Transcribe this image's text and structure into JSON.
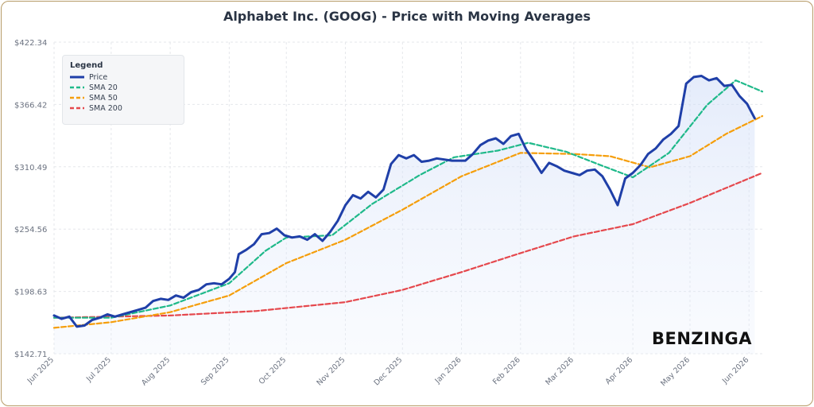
{
  "page": {
    "title": "Alphabet Inc. (GOOG) - Price with Moving Averages",
    "brand": "BENZINGA"
  },
  "legend": {
    "title": "Legend",
    "items": [
      {
        "label": "Price",
        "color": "#1f3fa8",
        "dash": "solid"
      },
      {
        "label": "SMA 20",
        "color": "#1fb98a",
        "dash": "dashed"
      },
      {
        "label": "SMA 50",
        "color": "#f59e0b",
        "dash": "dashed"
      },
      {
        "label": "SMA 200",
        "color": "#e5484d",
        "dash": "dashed"
      }
    ]
  },
  "chart_data": {
    "type": "line",
    "title": "Alphabet Inc. (GOOG) - Price with Moving Averages",
    "x_ticks": [
      "Jun 2025",
      "Jul 2025",
      "Aug 2025",
      "Sep 2025",
      "Oct 2025",
      "Nov 2025",
      "Dec 2025",
      "Jan 2026",
      "Feb 2026",
      "Mar 2026",
      "Apr 2026",
      "May 2026",
      "Jun 2026"
    ],
    "y_ticks": [
      "$142.71",
      "$198.63",
      "$254.56",
      "$310.49",
      "$366.42",
      "$422.34"
    ],
    "ylim": [
      142.71,
      422.34
    ],
    "xlim": [
      "2025-06-01",
      "2026-06-08"
    ],
    "grid": true,
    "legend_position": "top-left",
    "series": [
      {
        "name": "Price",
        "color": "#1f3fa8",
        "style": "solid",
        "area_fill": true,
        "points": [
          [
            "2025-06-01",
            177
          ],
          [
            "2025-06-05",
            174
          ],
          [
            "2025-06-09",
            176
          ],
          [
            "2025-06-13",
            167
          ],
          [
            "2025-06-17",
            168
          ],
          [
            "2025-06-21",
            173
          ],
          [
            "2025-06-25",
            175
          ],
          [
            "2025-06-29",
            178
          ],
          [
            "2025-07-03",
            176
          ],
          [
            "2025-07-07",
            178
          ],
          [
            "2025-07-11",
            180
          ],
          [
            "2025-07-15",
            182
          ],
          [
            "2025-07-19",
            184
          ],
          [
            "2025-07-23",
            190
          ],
          [
            "2025-07-27",
            192
          ],
          [
            "2025-07-31",
            191
          ],
          [
            "2025-08-04",
            195
          ],
          [
            "2025-08-08",
            193
          ],
          [
            "2025-08-12",
            198
          ],
          [
            "2025-08-16",
            200
          ],
          [
            "2025-08-20",
            205
          ],
          [
            "2025-08-24",
            206
          ],
          [
            "2025-08-28",
            205
          ],
          [
            "2025-09-01",
            210
          ],
          [
            "2025-09-04",
            216
          ],
          [
            "2025-09-06",
            232
          ],
          [
            "2025-09-10",
            236
          ],
          [
            "2025-09-14",
            241
          ],
          [
            "2025-09-18",
            250
          ],
          [
            "2025-09-22",
            251
          ],
          [
            "2025-09-26",
            255
          ],
          [
            "2025-09-30",
            249
          ],
          [
            "2025-10-04",
            247
          ],
          [
            "2025-10-08",
            248
          ],
          [
            "2025-10-12",
            245
          ],
          [
            "2025-10-16",
            250
          ],
          [
            "2025-10-20",
            244
          ],
          [
            "2025-10-24",
            252
          ],
          [
            "2025-10-28",
            262
          ],
          [
            "2025-11-01",
            276
          ],
          [
            "2025-11-05",
            285
          ],
          [
            "2025-11-09",
            282
          ],
          [
            "2025-11-13",
            288
          ],
          [
            "2025-11-17",
            283
          ],
          [
            "2025-11-21",
            290
          ],
          [
            "2025-11-25",
            313
          ],
          [
            "2025-11-29",
            321
          ],
          [
            "2025-12-03",
            318
          ],
          [
            "2025-12-07",
            321
          ],
          [
            "2025-12-11",
            315
          ],
          [
            "2025-12-15",
            316
          ],
          [
            "2025-12-19",
            318
          ],
          [
            "2025-12-23",
            317
          ],
          [
            "2025-12-27",
            316
          ],
          [
            "2026-01-03",
            316
          ],
          [
            "2026-01-07",
            322
          ],
          [
            "2026-01-11",
            330
          ],
          [
            "2026-01-15",
            334
          ],
          [
            "2026-01-19",
            336
          ],
          [
            "2026-01-23",
            331
          ],
          [
            "2026-01-27",
            338
          ],
          [
            "2026-01-31",
            340
          ],
          [
            "2026-02-04",
            326
          ],
          [
            "2026-02-08",
            316
          ],
          [
            "2026-02-12",
            305
          ],
          [
            "2026-02-16",
            314
          ],
          [
            "2026-02-20",
            311
          ],
          [
            "2026-02-24",
            307
          ],
          [
            "2026-02-28",
            305
          ],
          [
            "2026-03-04",
            303
          ],
          [
            "2026-03-08",
            307
          ],
          [
            "2026-03-12",
            308
          ],
          [
            "2026-03-16",
            302
          ],
          [
            "2026-03-20",
            290
          ],
          [
            "2026-03-24",
            276
          ],
          [
            "2026-03-28",
            300
          ],
          [
            "2026-04-01",
            305
          ],
          [
            "2026-04-05",
            312
          ],
          [
            "2026-04-09",
            322
          ],
          [
            "2026-04-13",
            327
          ],
          [
            "2026-04-17",
            335
          ],
          [
            "2026-04-21",
            340
          ],
          [
            "2026-04-25",
            347
          ],
          [
            "2026-04-29",
            385
          ],
          [
            "2026-05-03",
            391
          ],
          [
            "2026-05-07",
            392
          ],
          [
            "2026-05-11",
            388
          ],
          [
            "2026-05-15",
            390
          ],
          [
            "2026-05-19",
            383
          ],
          [
            "2026-05-23",
            384
          ],
          [
            "2026-05-27",
            374
          ],
          [
            "2026-05-31",
            367
          ],
          [
            "2026-06-04",
            354
          ]
        ]
      },
      {
        "name": "SMA 20",
        "color": "#1fb98a",
        "style": "dashed",
        "points": [
          [
            "2025-06-01",
            175
          ],
          [
            "2025-07-01",
            175
          ],
          [
            "2025-08-01",
            186
          ],
          [
            "2025-09-01",
            206
          ],
          [
            "2025-09-20",
            235
          ],
          [
            "2025-10-01",
            247
          ],
          [
            "2025-10-25",
            249
          ],
          [
            "2025-11-15",
            277
          ],
          [
            "2025-12-10",
            303
          ],
          [
            "2025-12-28",
            319
          ],
          [
            "2026-01-20",
            325
          ],
          [
            "2026-02-05",
            332
          ],
          [
            "2026-02-25",
            324
          ],
          [
            "2026-03-15",
            312
          ],
          [
            "2026-04-01",
            301
          ],
          [
            "2026-04-20",
            323
          ],
          [
            "2026-05-10",
            366
          ],
          [
            "2026-05-25",
            388
          ],
          [
            "2026-06-08",
            378
          ]
        ]
      },
      {
        "name": "SMA 50",
        "color": "#f59e0b",
        "style": "dashed",
        "points": [
          [
            "2025-06-01",
            166
          ],
          [
            "2025-07-01",
            171
          ],
          [
            "2025-08-01",
            180
          ],
          [
            "2025-09-01",
            195
          ],
          [
            "2025-10-01",
            224
          ],
          [
            "2025-11-01",
            245
          ],
          [
            "2025-12-01",
            272
          ],
          [
            "2026-01-01",
            302
          ],
          [
            "2026-02-01",
            323
          ],
          [
            "2026-03-01",
            322
          ],
          [
            "2026-03-20",
            320
          ],
          [
            "2026-04-10",
            310
          ],
          [
            "2026-05-01",
            320
          ],
          [
            "2026-05-20",
            340
          ],
          [
            "2026-06-08",
            356
          ]
        ]
      },
      {
        "name": "SMA 200",
        "color": "#e5484d",
        "style": "dashed",
        "points": [
          [
            "2025-06-01",
            175
          ],
          [
            "2025-08-01",
            177
          ],
          [
            "2025-09-15",
            181
          ],
          [
            "2025-11-01",
            189
          ],
          [
            "2025-12-01",
            200
          ],
          [
            "2026-01-01",
            216
          ],
          [
            "2026-02-01",
            233
          ],
          [
            "2026-03-01",
            248
          ],
          [
            "2026-04-01",
            259
          ],
          [
            "2026-05-01",
            278
          ],
          [
            "2026-06-08",
            305
          ]
        ]
      }
    ]
  }
}
